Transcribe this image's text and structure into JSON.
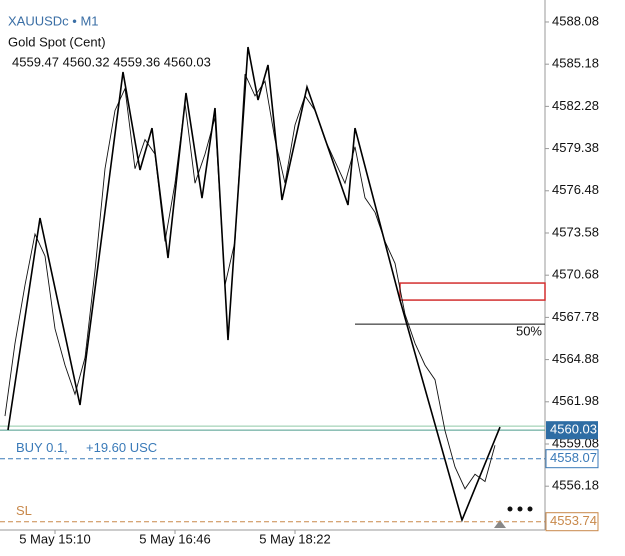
{
  "chart_data": {
    "type": "line",
    "symbol": "XAUUSDc • M1",
    "title": "Gold Spot (Cent)",
    "ohlc_text": "4559.47 4560.32 4559.36 4560.03",
    "categories": [
      null,
      null,
      null,
      null,
      null,
      "5 May 15:10",
      null,
      null,
      null,
      null,
      null,
      null,
      null,
      null,
      null,
      null,
      null,
      "5 May 16:46",
      null,
      null,
      null,
      null,
      null,
      null,
      null,
      null,
      null,
      null,
      null,
      "5 May 18:22",
      null,
      null,
      null,
      null,
      null,
      null,
      null,
      null,
      null,
      null,
      null,
      null,
      null,
      null,
      null,
      null,
      null,
      null,
      null,
      null
    ],
    "series": [
      {
        "color": "#111111",
        "values": [
          4561.0,
          4566,
          4570,
          4573.5,
          4572,
          4567,
          4564.5,
          4562.5,
          4565,
          4571,
          4578,
          4582,
          4583.5,
          4578,
          4580,
          4579,
          4573,
          4577,
          4582.5,
          4577,
          4579,
          4581.5,
          4570,
          4573,
          4584.5,
          4583,
          4584,
          4580,
          4577,
          4581,
          4583,
          4582,
          4580,
          4578.5,
          4577,
          4579.5,
          4576,
          4575,
          4573,
          4571.5,
          4568,
          4566,
          4564.5,
          4563.5,
          4560,
          4557.5,
          4556,
          4557,
          4556.5,
          4559
        ]
      },
      {
        "color": "#000000",
        "x": [
          0.3,
          3.5,
          7.5,
          11.8,
          13.5,
          14.7,
          16.3,
          18.1,
          19.7,
          21,
          22.3,
          24.3,
          25.3,
          26.3,
          27.7,
          30.2,
          34.3,
          35,
          39.5,
          45.7,
          49.5
        ],
        "values": [
          4560.04,
          4574.61,
          4561.76,
          4584.64,
          4577.91,
          4580.79,
          4571.86,
          4583.2,
          4575.98,
          4582.17,
          4566.22,
          4586.36,
          4582.72,
          4585.12,
          4575.85,
          4583.61,
          4575.5,
          4580.79,
          4568.97,
          4553.85,
          4560.24
        ]
      }
    ],
    "ylim": [
      4553.17,
      4589.59
    ],
    "yticks": [
      4588.08,
      4585.18,
      4582.28,
      4579.38,
      4576.48,
      4573.58,
      4570.68,
      4567.78,
      4564.88,
      4561.98,
      4559.08,
      4556.18
    ],
    "price": 4560.03,
    "buy": {
      "value": 4558.07,
      "label": "BUY 0.1,",
      "profit": "+19.60 USC"
    },
    "sl": {
      "value": 4553.74,
      "label": "SL"
    },
    "fib": {
      "value": 4567.32,
      "label": "50%"
    },
    "zone": [
      4570.14,
      4568.97
    ]
  }
}
